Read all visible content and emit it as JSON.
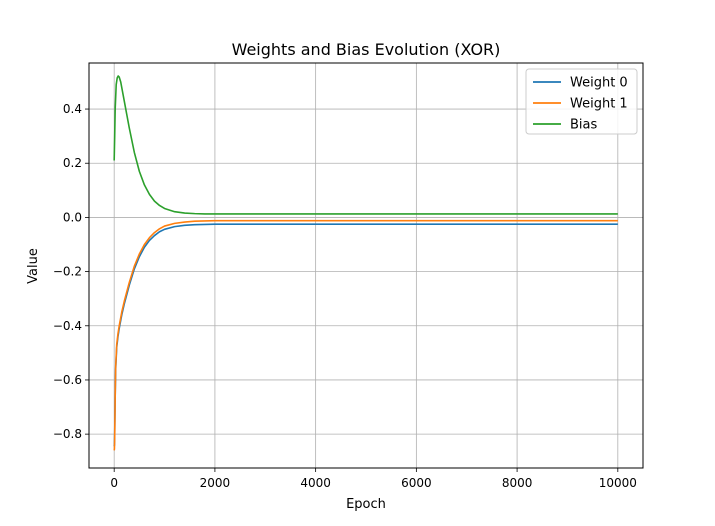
{
  "chart_data": {
    "type": "line",
    "title": "Weights and Bias Evolution (XOR)",
    "xlabel": "Epoch",
    "ylabel": "Value",
    "xlim": [
      -500,
      10500
    ],
    "ylim": [
      -0.925,
      0.57
    ],
    "xticks": [
      0,
      2000,
      4000,
      6000,
      8000,
      10000
    ],
    "yticks": [
      -0.8,
      -0.6,
      -0.4,
      -0.2,
      0.0,
      0.2,
      0.4
    ],
    "xtick_labels": [
      "0",
      "2000",
      "4000",
      "6000",
      "8000",
      "10000"
    ],
    "ytick_labels": [
      "−0.8",
      "−0.6",
      "−0.4",
      "−0.2",
      "0.0",
      "0.2",
      "0.4"
    ],
    "grid": true,
    "legend_position": "top-right",
    "series": [
      {
        "name": "Weight 0",
        "color": "#1f77b4",
        "x": [
          0,
          5,
          10,
          20,
          30,
          50,
          75,
          100,
          150,
          200,
          300,
          400,
          500,
          600,
          700,
          800,
          900,
          1000,
          1200,
          1400,
          1600,
          1800,
          2000,
          2500,
          3000,
          4000,
          5000,
          6000,
          7000,
          8000,
          9000,
          10000
        ],
        "y": [
          -0.845,
          -0.84,
          -0.8,
          -0.66,
          -0.56,
          -0.48,
          -0.44,
          -0.41,
          -0.36,
          -0.32,
          -0.25,
          -0.19,
          -0.145,
          -0.11,
          -0.085,
          -0.067,
          -0.053,
          -0.044,
          -0.034,
          -0.029,
          -0.027,
          -0.026,
          -0.025,
          -0.025,
          -0.025,
          -0.025,
          -0.025,
          -0.025,
          -0.025,
          -0.025,
          -0.025,
          -0.025
        ]
      },
      {
        "name": "Weight 1",
        "color": "#ff7f0e",
        "x": [
          0,
          5,
          10,
          20,
          30,
          50,
          75,
          100,
          150,
          200,
          300,
          400,
          500,
          600,
          700,
          800,
          900,
          1000,
          1200,
          1400,
          1600,
          1800,
          2000,
          2500,
          3000,
          4000,
          5000,
          6000,
          7000,
          8000,
          9000,
          10000
        ],
        "y": [
          -0.86,
          -0.855,
          -0.81,
          -0.66,
          -0.55,
          -0.47,
          -0.43,
          -0.4,
          -0.35,
          -0.31,
          -0.24,
          -0.18,
          -0.135,
          -0.1,
          -0.075,
          -0.056,
          -0.042,
          -0.032,
          -0.022,
          -0.017,
          -0.014,
          -0.013,
          -0.012,
          -0.012,
          -0.012,
          -0.012,
          -0.012,
          -0.012,
          -0.012,
          -0.012,
          -0.012,
          -0.012
        ]
      },
      {
        "name": "Bias",
        "color": "#2ca02c",
        "x": [
          0,
          10,
          20,
          40,
          60,
          80,
          100,
          130,
          160,
          200,
          250,
          300,
          400,
          500,
          600,
          700,
          800,
          900,
          1000,
          1200,
          1400,
          1600,
          1800,
          2000,
          2500,
          3000,
          4000,
          5000,
          6000,
          7000,
          8000,
          9000,
          10000
        ],
        "y": [
          0.21,
          0.3,
          0.4,
          0.49,
          0.515,
          0.522,
          0.518,
          0.5,
          0.47,
          0.43,
          0.38,
          0.33,
          0.24,
          0.17,
          0.12,
          0.085,
          0.06,
          0.044,
          0.033,
          0.021,
          0.016,
          0.014,
          0.013,
          0.013,
          0.013,
          0.013,
          0.013,
          0.013,
          0.013,
          0.013,
          0.013,
          0.013,
          0.013
        ]
      }
    ]
  }
}
